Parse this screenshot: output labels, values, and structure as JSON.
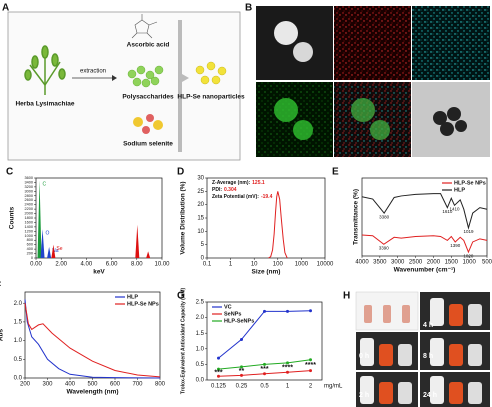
{
  "schematic": {
    "panel": "A",
    "plant": "Herba Lysimachiae",
    "step": "extraction",
    "reagent": "Ascorbic acid",
    "extract": "Polysaccharides",
    "salt": "Sodium selenite",
    "product": "HLP-Se nanoparticles"
  },
  "micrographs": {
    "panel": "B"
  },
  "photos": {
    "panel": "H",
    "times": [
      "4 h",
      "0 h",
      "8 h",
      "2 h",
      "24 h"
    ]
  },
  "chart_data": [
    {
      "type": "spectrum",
      "panel": "C",
      "xlabel": "keV",
      "ylabel": "Counts",
      "xlim": [
        0,
        10
      ],
      "xticks": [
        {
          "value": 0,
          "label": "0.00"
        },
        {
          "value": 2,
          "label": "2.00"
        },
        {
          "value": 4,
          "label": "4.00"
        },
        {
          "value": 6,
          "label": "6.00"
        },
        {
          "value": 8,
          "label": "8.00"
        },
        {
          "value": 10,
          "label": "10.00"
        }
      ],
      "ylim": [
        0,
        3600
      ],
      "yticks": [
        0,
        200,
        400,
        600,
        800,
        1000,
        1200,
        1400,
        1600,
        1800,
        2000,
        2200,
        2400,
        2600,
        2800,
        3000,
        3200,
        3400,
        3600
      ],
      "series": [
        {
          "name": "C",
          "color": "#1a9a3a",
          "x": [
            0.28
          ],
          "values": [
            3500
          ]
        },
        {
          "name": "O",
          "color": "#2244cc",
          "x": [
            0.52
          ],
          "values": [
            1300
          ]
        },
        {
          "name": "Na",
          "color": "#2244cc",
          "x": [
            1.04
          ],
          "values": [
            500
          ]
        },
        {
          "name": "Se",
          "color": "#dd1111",
          "x": [
            1.38
          ],
          "values": [
            600
          ]
        },
        {
          "color": "#dd1111",
          "x": [
            8.04,
            8.9
          ],
          "values": [
            1500,
            300
          ]
        }
      ]
    },
    {
      "type": "line",
      "panel": "D",
      "xlabel": "Size (nm)",
      "ylabel": "Volume Distribution (%)",
      "xlog": true,
      "xlim": [
        0.1,
        10000
      ],
      "xticks": [
        0.1,
        1,
        10,
        100,
        1000,
        10000
      ],
      "ylim": [
        0,
        30
      ],
      "yticks": [
        0,
        5,
        10,
        15,
        20,
        25,
        30
      ],
      "stats": [
        {
          "label": "Z-Average (nm):",
          "value": 125.1
        },
        {
          "label": "PDI:",
          "value": 0.304
        },
        {
          "label": "Zeta Potential (mV):",
          "value": -19.4
        }
      ],
      "series": [
        {
          "color": "#e02020",
          "x": [
            40,
            50,
            60,
            70,
            80,
            90,
            100,
            120,
            140,
            170,
            200,
            250
          ],
          "values": [
            0,
            0.5,
            3,
            9,
            17,
            23,
            25,
            22,
            15,
            7,
            2,
            0
          ]
        }
      ]
    },
    {
      "type": "line",
      "panel": "E",
      "xlabel": "Wavenumber (cm⁻¹)",
      "ylabel": "Transmittance (%)",
      "legend": "upper right",
      "xlim": [
        4000,
        500
      ],
      "xticks": [
        4000,
        3500,
        3000,
        2500,
        2000,
        1500,
        1000,
        500
      ],
      "ylim": [
        0,
        100
      ],
      "series": [
        {
          "name": "HLP-Se NPs",
          "color": "#e02020",
          "x": [
            4000,
            3700,
            3390,
            3100,
            2900,
            2500,
            2000,
            1800,
            1610,
            1500,
            1390,
            1250,
            1150,
            1020,
            900,
            700,
            500
          ],
          "values": [
            27,
            26,
            15,
            24,
            23,
            25,
            26,
            25,
            20,
            25,
            18,
            24,
            20,
            5,
            18,
            22,
            20
          ],
          "annotations": [
            "3390",
            "1390",
            "1020"
          ]
        },
        {
          "name": "HLP",
          "color": "#222222",
          "x": [
            4000,
            3700,
            3380,
            3100,
            2900,
            2500,
            2000,
            1800,
            1610,
            1500,
            1410,
            1250,
            1150,
            1019,
            900,
            700,
            500
          ],
          "values": [
            76,
            73,
            55,
            75,
            77,
            79,
            80,
            80,
            62,
            74,
            65,
            72,
            60,
            36,
            55,
            62,
            60
          ],
          "annotations": [
            "3380",
            "1610",
            "1410",
            "1019"
          ]
        }
      ]
    },
    {
      "type": "line",
      "panel": "F",
      "xlabel": "Wavelength (nm)",
      "ylabel": "Abs",
      "legend": "upper right",
      "xlim": [
        200,
        800
      ],
      "xticks": [
        200,
        300,
        400,
        500,
        600,
        700,
        800
      ],
      "ylim": [
        0,
        2.3
      ],
      "yticks": [
        {
          "value": 0,
          "label": "0.0"
        },
        {
          "value": 0.5,
          "label": "0.5"
        },
        {
          "value": 1,
          "label": "1.0"
        },
        {
          "value": 1.5,
          "label": "1.5"
        },
        {
          "value": 2,
          "label": "2.0"
        }
      ],
      "series": [
        {
          "name": "HLP",
          "color": "#2233cc",
          "x": [
            200,
            210,
            230,
            260,
            300,
            350,
            400,
            500,
            600,
            800
          ],
          "values": [
            2.1,
            1.5,
            1.1,
            0.9,
            0.5,
            0.25,
            0.1,
            0.02,
            0.01,
            0
          ]
        },
        {
          "name": "HLP-Se NPs",
          "color": "#e02020",
          "x": [
            200,
            215,
            230,
            260,
            280,
            320,
            400,
            500,
            600,
            700,
            800
          ],
          "values": [
            2,
            1.45,
            1.3,
            1.42,
            1.45,
            1.2,
            0.8,
            0.45,
            0.2,
            0.08,
            0.03
          ]
        }
      ]
    },
    {
      "type": "line",
      "panel": "G",
      "ylabel": "Trolox-Equivalent Antioxidant Capacity (mM)",
      "xunit": "mg/mL",
      "legend": "upper left",
      "markers": true,
      "categories": [
        "0.125",
        "0.25",
        "0.5",
        "1",
        "2"
      ],
      "ylim": [
        0,
        2.5
      ],
      "yticks": [
        {
          "value": 0,
          "label": "0.0"
        },
        {
          "value": 0.5,
          "label": "0.5"
        },
        {
          "value": 1,
          "label": "1.0"
        },
        {
          "value": 1.5,
          "label": "1.5"
        },
        {
          "value": 2,
          "label": "2.0"
        },
        {
          "value": 2.5,
          "label": "2.5"
        }
      ],
      "significance": [
        "***",
        "**",
        "***",
        "****",
        "****"
      ],
      "series": [
        {
          "name": "VC",
          "color": "#2233cc",
          "values": [
            0.7,
            1.3,
            2.2,
            2.2,
            2.22
          ]
        },
        {
          "name": "SeNPs",
          "color": "#e02020",
          "values": [
            0.12,
            0.15,
            0.2,
            0.25,
            0.3
          ]
        },
        {
          "name": "HLP-SeNPs",
          "color": "#22aa22",
          "values": [
            0.35,
            0.42,
            0.5,
            0.55,
            0.65
          ]
        }
      ]
    }
  ]
}
